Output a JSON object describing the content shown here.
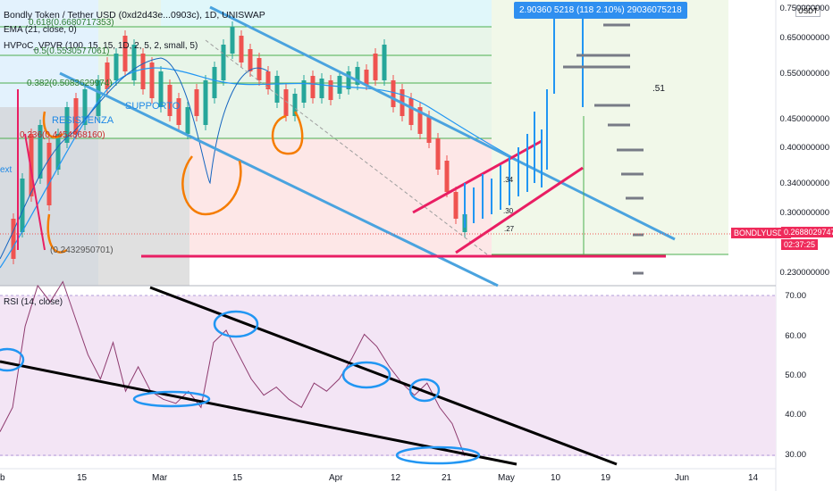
{
  "header": {
    "title": "Bondly Token / Tether USD (0xd2d43e...0903c), 1D, UNISWAP",
    "indicator_ema": "EMA (21, close, 0)",
    "indicator_hvpoc": "HVPoC_VPVR (100, 15, 15, 1D, 2, 5, 2, small, 5)",
    "rsi_label": "RSI (14, close)"
  },
  "annotations": {
    "resistenza": "RESISTENZA",
    "supporto": "SUPPORTO",
    "ext": "ext",
    "fib_0618": "0.618(0.6680717353)",
    "fib_05": "0.5(0.5530577061)",
    "fib_0382": "0.382(0.5083629974)",
    "fib_0236": "0.236(0.4454868160)",
    "fib_0": "(0.2432950701)",
    "n51": ".51",
    "n34": ".34",
    "n30": ".30",
    "n27": ".27"
  },
  "tooltip": "2.90360 5218 (118 2.10%) 29036075218",
  "price_badge": {
    "symbol": "BONDLYUSDT",
    "price": "0.2688029747",
    "countdown": "02:37:25"
  },
  "currency": "USDT",
  "colors": {
    "up": "#26a69a",
    "down": "#ef5350",
    "blue_line": "#4aa3df",
    "pink": "#e91e63",
    "rsi_bg": "#f3e5f5",
    "orange": "#f57c00"
  },
  "chart_data": [
    {
      "type": "candlestick",
      "title": "Bondly Token / Tether USD (0xd2d43e...0903c), 1D, UNISWAP",
      "y_axis": {
        "scale": "log",
        "ticks": [
          "0.750000000",
          "0.650000000",
          "0.550000000",
          "0.450000000",
          "0.400000000",
          "0.340000000",
          "0.300000000",
          "0.230000000"
        ]
      },
      "x_axis": {
        "ticks": [
          "b",
          "15",
          "Mar",
          "15",
          "Apr",
          "12",
          "21",
          "May",
          "10",
          "19",
          "Jun",
          "14"
        ]
      },
      "last_price": 0.2688029747,
      "approx_range": [
        0.2432950701,
        0.67
      ]
    },
    {
      "type": "line",
      "title": "RSI (14, close)",
      "y_axis": {
        "ticks": [
          "70.00",
          "60.00",
          "50.00",
          "40.00",
          "30.00"
        ],
        "ylim": [
          28,
          72
        ]
      },
      "values": [
        36,
        42,
        62,
        72,
        68,
        73,
        64,
        55,
        49,
        58,
        46,
        52,
        46,
        44,
        43,
        46,
        42,
        58,
        61,
        55,
        49,
        45,
        47,
        44,
        42,
        48,
        46,
        49,
        54,
        60,
        57,
        52,
        48,
        45,
        48,
        42,
        38,
        30
      ]
    }
  ]
}
